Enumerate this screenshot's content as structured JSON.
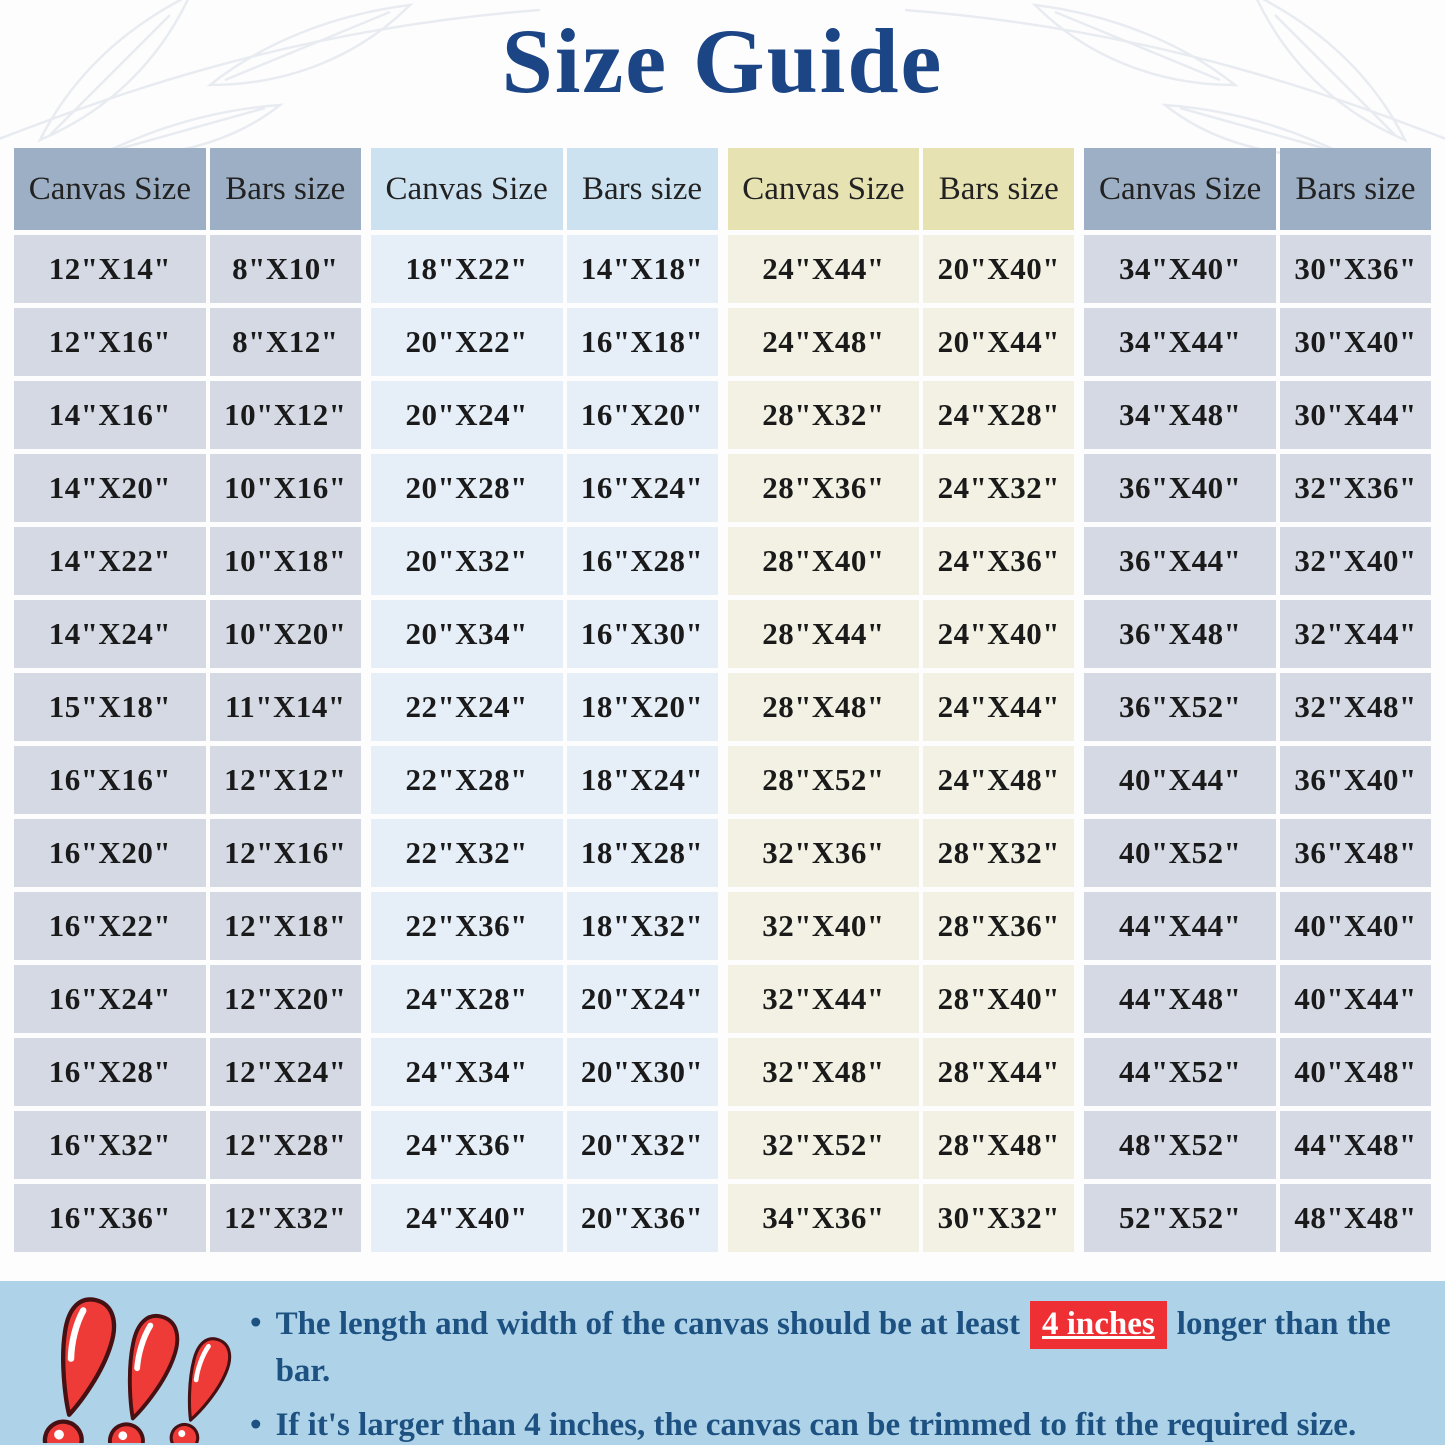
{
  "title": "Size Guide",
  "colors": {
    "title_color": "#1c4586",
    "notes_band_bg": "#aed3e8",
    "notes_text": "#1d5181",
    "highlight_bg": "#ee2f33",
    "highlight_text": "#ffffff",
    "exclamation_red": "#ee3b38",
    "exclamation_outline": "#471013"
  },
  "tables": [
    {
      "theme": {
        "header_bg": "#9dafc4",
        "body_bg": "#d4d9e3"
      },
      "header": {
        "canvas": "Canvas Size",
        "bars": "Bars size"
      },
      "rows": [
        {
          "canvas": "12\"X14\"",
          "bars": "8\"X10\""
        },
        {
          "canvas": "12\"X16\"",
          "bars": "8\"X12\""
        },
        {
          "canvas": "14\"X16\"",
          "bars": "10\"X12\""
        },
        {
          "canvas": "14\"X20\"",
          "bars": "10\"X16\""
        },
        {
          "canvas": "14\"X22\"",
          "bars": "10\"X18\""
        },
        {
          "canvas": "14\"X24\"",
          "bars": "10\"X20\""
        },
        {
          "canvas": "15\"X18\"",
          "bars": "11\"X14\""
        },
        {
          "canvas": "16\"X16\"",
          "bars": "12\"X12\""
        },
        {
          "canvas": "16\"X20\"",
          "bars": "12\"X16\""
        },
        {
          "canvas": "16\"X22\"",
          "bars": "12\"X18\""
        },
        {
          "canvas": "16\"X24\"",
          "bars": "12\"X20\""
        },
        {
          "canvas": "16\"X28\"",
          "bars": "12\"X24\""
        },
        {
          "canvas": "16\"X32\"",
          "bars": "12\"X28\""
        },
        {
          "canvas": "16\"X36\"",
          "bars": "12\"X32\""
        }
      ]
    },
    {
      "theme": {
        "header_bg": "#cde2f0",
        "body_bg": "#e6eff8"
      },
      "header": {
        "canvas": "Canvas Size",
        "bars": "Bars size"
      },
      "rows": [
        {
          "canvas": "18\"X22\"",
          "bars": "14\"X18\""
        },
        {
          "canvas": "20\"X22\"",
          "bars": "16\"X18\""
        },
        {
          "canvas": "20\"X24\"",
          "bars": "16\"X20\""
        },
        {
          "canvas": "20\"X28\"",
          "bars": "16\"X24\""
        },
        {
          "canvas": "20\"X32\"",
          "bars": "16\"X28\""
        },
        {
          "canvas": "20\"X34\"",
          "bars": "16\"X30\""
        },
        {
          "canvas": "22\"X24\"",
          "bars": "18\"X20\""
        },
        {
          "canvas": "22\"X28\"",
          "bars": "18\"X24\""
        },
        {
          "canvas": "22\"X32\"",
          "bars": "18\"X28\""
        },
        {
          "canvas": "22\"X36\"",
          "bars": "18\"X32\""
        },
        {
          "canvas": "24\"X28\"",
          "bars": "20\"X24\""
        },
        {
          "canvas": "24\"X34\"",
          "bars": "20\"X30\""
        },
        {
          "canvas": "24\"X36\"",
          "bars": "20\"X32\""
        },
        {
          "canvas": "24\"X40\"",
          "bars": "20\"X36\""
        }
      ]
    },
    {
      "theme": {
        "header_bg": "#e7e2b2",
        "body_bg": "#f3f1e3"
      },
      "header": {
        "canvas": "Canvas Size",
        "bars": "Bars size"
      },
      "rows": [
        {
          "canvas": "24\"X44\"",
          "bars": "20\"X40\""
        },
        {
          "canvas": "24\"X48\"",
          "bars": "20\"X44\""
        },
        {
          "canvas": "28\"X32\"",
          "bars": "24\"X28\""
        },
        {
          "canvas": "28\"X36\"",
          "bars": "24\"X32\""
        },
        {
          "canvas": "28\"X40\"",
          "bars": "24\"X36\""
        },
        {
          "canvas": "28\"X44\"",
          "bars": "24\"X40\""
        },
        {
          "canvas": "28\"X48\"",
          "bars": "24\"X44\""
        },
        {
          "canvas": "28\"X52\"",
          "bars": "24\"X48\""
        },
        {
          "canvas": "32\"X36\"",
          "bars": "28\"X32\""
        },
        {
          "canvas": "32\"X40\"",
          "bars": "28\"X36\""
        },
        {
          "canvas": "32\"X44\"",
          "bars": "28\"X40\""
        },
        {
          "canvas": "32\"X48\"",
          "bars": "28\"X44\""
        },
        {
          "canvas": "32\"X52\"",
          "bars": "28\"X48\""
        },
        {
          "canvas": "34\"X36\"",
          "bars": "30\"X32\""
        }
      ]
    },
    {
      "theme": {
        "header_bg": "#9dafc4",
        "body_bg": "#d4d9e3"
      },
      "header": {
        "canvas": "Canvas Size",
        "bars": "Bars size"
      },
      "rows": [
        {
          "canvas": "34\"X40\"",
          "bars": "30\"X36\""
        },
        {
          "canvas": "34\"X44\"",
          "bars": "30\"X40\""
        },
        {
          "canvas": "34\"X48\"",
          "bars": "30\"X44\""
        },
        {
          "canvas": "36\"X40\"",
          "bars": "32\"X36\""
        },
        {
          "canvas": "36\"X44\"",
          "bars": "32\"X40\""
        },
        {
          "canvas": "36\"X48\"",
          "bars": "32\"X44\""
        },
        {
          "canvas": "36\"X52\"",
          "bars": "32\"X48\""
        },
        {
          "canvas": "40\"X44\"",
          "bars": "36\"X40\""
        },
        {
          "canvas": "40\"X52\"",
          "bars": "36\"X48\""
        },
        {
          "canvas": "44\"X44\"",
          "bars": "40\"X40\""
        },
        {
          "canvas": "44\"X48\"",
          "bars": "40\"X44\""
        },
        {
          "canvas": "44\"X52\"",
          "bars": "40\"X48\""
        },
        {
          "canvas": "48\"X52\"",
          "bars": "44\"X48\""
        },
        {
          "canvas": "52\"X52\"",
          "bars": "48\"X48\""
        }
      ]
    }
  ],
  "notes": {
    "bullet": "•",
    "note1_pre": "The length and width of the canvas should be at least",
    "note1_highlight": "4 inches",
    "note1_post": "longer than the bar.",
    "note2": "If it's larger than 4 inches, the canvas can be trimmed to fit the required size."
  }
}
